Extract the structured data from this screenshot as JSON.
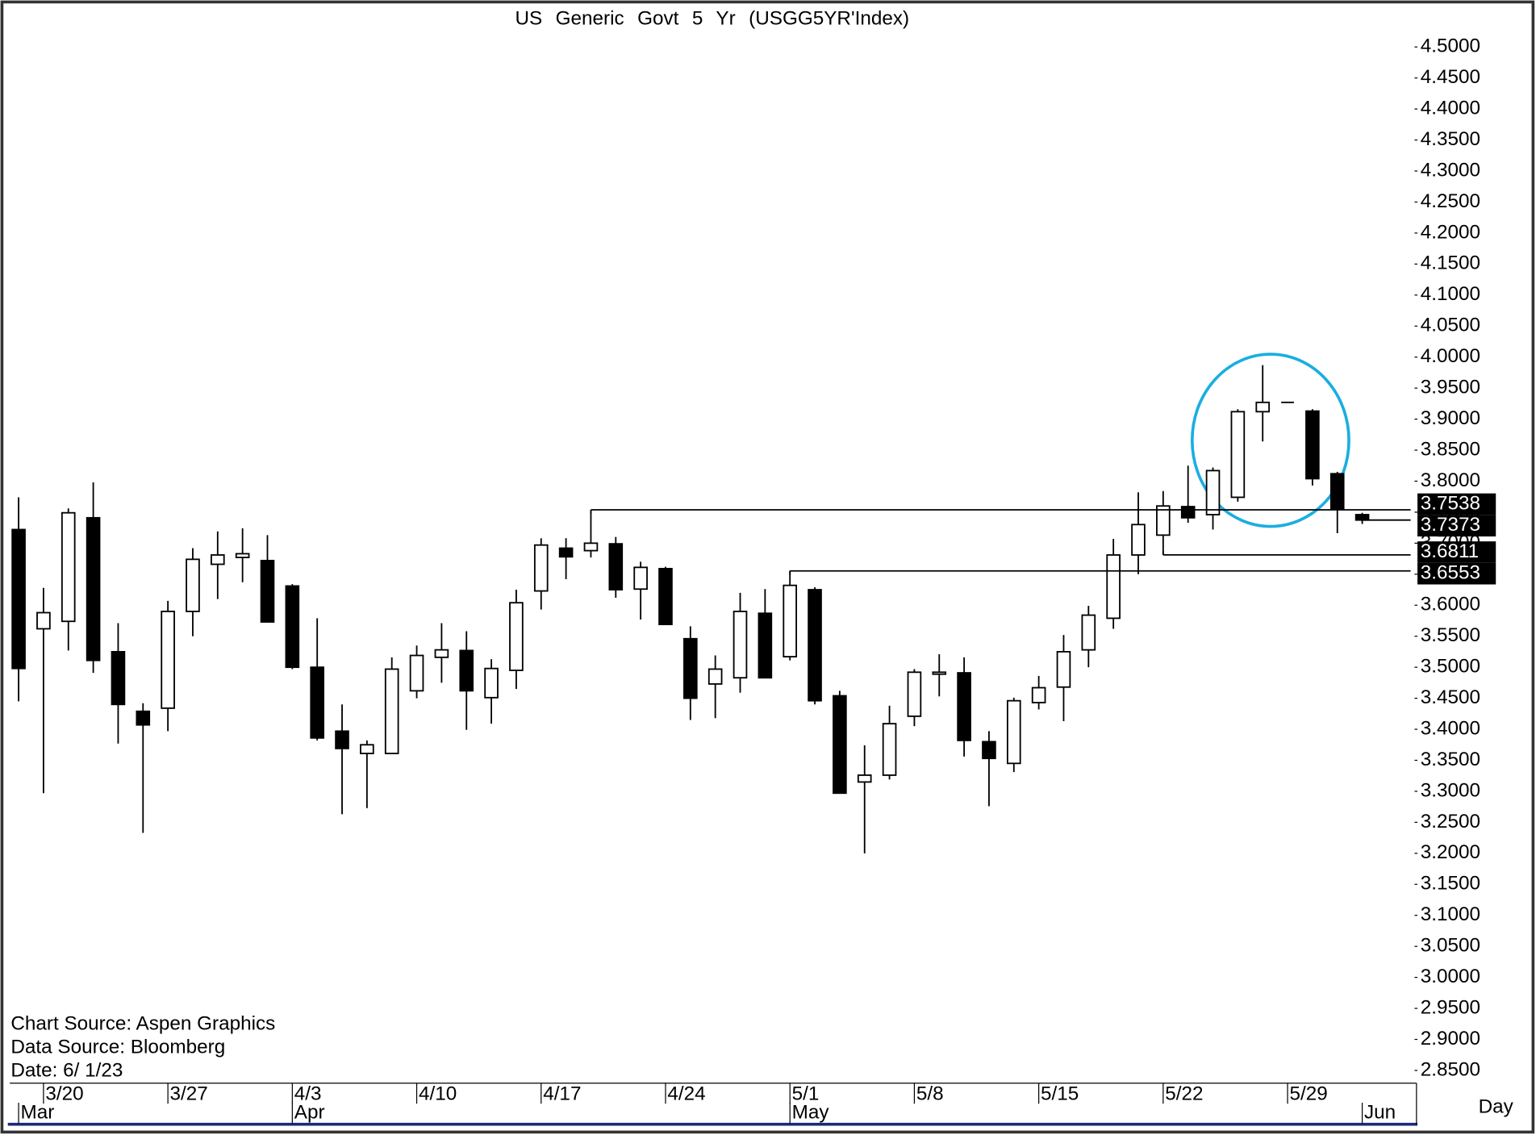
{
  "chart_data": {
    "type": "candlestick",
    "title": "US Generic Govt 5 Yr (USGG5YR'Index)",
    "xlabel": "Day",
    "notes": [
      "Chart Source: Aspen Graphics",
      "Data Source: Bloomberg",
      "Date: 6/ 1/23"
    ],
    "categories": [
      null,
      "3/20",
      null,
      null,
      null,
      null,
      "3/27",
      null,
      null,
      null,
      null,
      "4/3",
      null,
      null,
      null,
      null,
      "4/10",
      null,
      null,
      null,
      null,
      "4/17",
      null,
      null,
      null,
      null,
      "4/24",
      null,
      null,
      null,
      null,
      "5/1",
      null,
      null,
      null,
      null,
      "5/8",
      null,
      null,
      null,
      null,
      "5/15",
      null,
      null,
      null,
      null,
      "5/22",
      null,
      null,
      null,
      null,
      "5/29",
      null,
      null,
      null
    ],
    "months": [
      "Mar",
      null,
      null,
      null,
      null,
      null,
      null,
      null,
      null,
      null,
      null,
      "Apr",
      null,
      null,
      null,
      null,
      null,
      null,
      null,
      null,
      null,
      null,
      null,
      null,
      null,
      null,
      null,
      null,
      null,
      null,
      null,
      "May",
      null,
      null,
      null,
      null,
      null,
      null,
      null,
      null,
      null,
      null,
      null,
      null,
      null,
      null,
      null,
      null,
      null,
      null,
      null,
      null,
      null,
      null,
      "Jun"
    ],
    "open": [
      3.722,
      3.562,
      3.574,
      3.741,
      3.525,
      3.429,
      3.434,
      3.59,
      3.666,
      3.677,
      3.672,
      3.631,
      3.5,
      3.397,
      3.361,
      3.361,
      3.462,
      3.516,
      3.527,
      3.451,
      3.495,
      3.623,
      3.692,
      3.688,
      3.699,
      3.626,
      3.659,
      3.546,
      3.473,
      3.483,
      3.587,
      3.517,
      3.625,
      3.454,
      3.315,
      3.326,
      3.421,
      3.489,
      3.491,
      3.38,
      3.345,
      3.443,
      3.468,
      3.528,
      3.579,
      3.681,
      3.713,
      3.759,
      3.746,
      3.774,
      3.912,
      3.927,
      3.913,
      3.812,
      3.746
    ],
    "high": [
      3.774,
      3.628,
      3.756,
      3.798,
      3.571,
      3.442,
      3.607,
      3.692,
      3.719,
      3.724,
      3.713,
      3.634,
      3.579,
      3.44,
      3.382,
      3.516,
      3.535,
      3.571,
      3.558,
      3.513,
      3.625,
      3.708,
      3.708,
      3.7538,
      3.71,
      3.67,
      3.662,
      3.566,
      3.519,
      3.62,
      3.626,
      3.6553,
      3.629,
      3.462,
      3.374,
      3.438,
      3.497,
      3.521,
      3.516,
      3.397,
      3.451,
      3.486,
      3.552,
      3.599,
      3.707,
      3.782,
      3.784,
      3.825,
      3.822,
      3.916,
      3.987,
      3.927,
      3.916,
      3.815,
      3.749
    ],
    "low": [
      3.445,
      3.297,
      3.527,
      3.491,
      3.377,
      3.233,
      3.397,
      3.55,
      3.61,
      3.637,
      3.573,
      3.497,
      3.382,
      3.263,
      3.273,
      3.361,
      3.45,
      3.475,
      3.399,
      3.409,
      3.465,
      3.593,
      3.642,
      3.677,
      3.612,
      3.577,
      3.568,
      3.415,
      3.418,
      3.459,
      3.483,
      3.511,
      3.44,
      3.297,
      3.2,
      3.319,
      3.405,
      3.453,
      3.356,
      3.276,
      3.331,
      3.432,
      3.413,
      3.5,
      3.562,
      3.65,
      3.6811,
      3.733,
      3.722,
      3.767,
      3.864,
      3.927,
      3.793,
      3.716,
      3.735
    ],
    "close": [
      3.498,
      3.588,
      3.749,
      3.511,
      3.44,
      3.407,
      3.59,
      3.674,
      3.681,
      3.683,
      3.573,
      3.5,
      3.386,
      3.369,
      3.375,
      3.497,
      3.519,
      3.528,
      3.462,
      3.498,
      3.604,
      3.697,
      3.678,
      3.7,
      3.625,
      3.661,
      3.569,
      3.45,
      3.497,
      3.59,
      3.483,
      3.632,
      3.446,
      3.297,
      3.326,
      3.409,
      3.492,
      3.492,
      3.382,
      3.353,
      3.446,
      3.467,
      3.525,
      3.584,
      3.681,
      3.73,
      3.76,
      3.741,
      3.817,
      3.912,
      3.927,
      3.927,
      3.804,
      3.755,
      3.7373
    ],
    "up_color": "#ffffff",
    "down_color": "#000000",
    "levels": [
      3.7538,
      3.7373,
      3.6811,
      3.6553
    ],
    "ylim": [
      2.85,
      4.5
    ],
    "yticks": [
      {
        "value": 4.5,
        "label": "4.5000"
      },
      {
        "value": 4.45,
        "label": "4.4500"
      },
      {
        "value": 4.4,
        "label": "4.4000"
      },
      {
        "value": 4.35,
        "label": "4.3500"
      },
      {
        "value": 4.3,
        "label": "4.3000"
      },
      {
        "value": 4.25,
        "label": "4.2500"
      },
      {
        "value": 4.2,
        "label": "4.2000"
      },
      {
        "value": 4.15,
        "label": "4.1500"
      },
      {
        "value": 4.1,
        "label": "4.1000"
      },
      {
        "value": 4.05,
        "label": "4.0500"
      },
      {
        "value": 4,
        "label": "4.0000"
      },
      {
        "value": 3.95,
        "label": "3.9500"
      },
      {
        "value": 3.9,
        "label": "3.9000"
      },
      {
        "value": 3.85,
        "label": "3.8500"
      },
      {
        "value": 3.8,
        "label": "3.8000"
      },
      {
        "value": 3.75,
        "label": "3.7500"
      },
      {
        "value": 3.7,
        "label": "3.7000"
      },
      {
        "value": 3.65,
        "label": "3.6500"
      },
      {
        "value": 3.6,
        "label": "3.6000"
      },
      {
        "value": 3.55,
        "label": "3.5500"
      },
      {
        "value": 3.5,
        "label": "3.5000"
      },
      {
        "value": 3.45,
        "label": "3.4500"
      },
      {
        "value": 3.4,
        "label": "3.4000"
      },
      {
        "value": 3.35,
        "label": "3.3500"
      },
      {
        "value": 3.3,
        "label": "3.3000"
      },
      {
        "value": 3.25,
        "label": "3.2500"
      },
      {
        "value": 3.2,
        "label": "3.2000"
      },
      {
        "value": 3.15,
        "label": "3.1500"
      },
      {
        "value": 3.1,
        "label": "3.1000"
      },
      {
        "value": 3.05,
        "label": "3.0500"
      },
      {
        "value": 3,
        "label": "3.0000"
      },
      {
        "value": 2.95,
        "label": "2.9500"
      },
      {
        "value": 2.9,
        "label": "2.9000"
      },
      {
        "value": 2.85,
        "label": "2.8500"
      }
    ],
    "grid": false
  }
}
